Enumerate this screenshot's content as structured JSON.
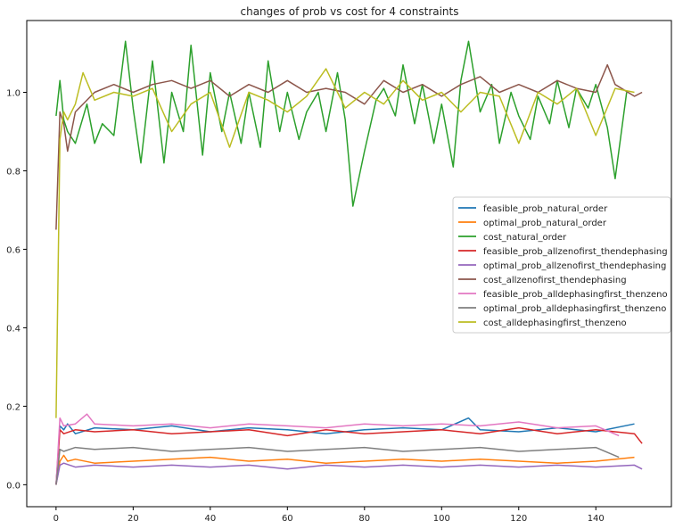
{
  "chart_data": {
    "type": "line",
    "title": "changes of prob vs cost for 4 constraints",
    "xlabel": "",
    "ylabel": "",
    "xlim": [
      -7.6,
      159.6
    ],
    "ylim": [
      -0.056,
      1.183
    ],
    "xticks": [
      0,
      20,
      40,
      60,
      80,
      100,
      120,
      140
    ],
    "yticks": [
      0.0,
      0.2,
      0.4,
      0.6,
      0.8,
      1.0
    ],
    "ytick_labels": [
      "0.0",
      "0.2",
      "0.4",
      "0.6",
      "0.8",
      "1.0"
    ],
    "grid": false,
    "legend_position": "center-right",
    "series": [
      {
        "name": "feasible_prob_natural_order",
        "color": "#1f77b4",
        "x": [
          0,
          1,
          2,
          3,
          5,
          10,
          20,
          30,
          40,
          50,
          60,
          70,
          80,
          90,
          100,
          107,
          110,
          120,
          130,
          140,
          150
        ],
        "values": [
          0.0,
          0.15,
          0.14,
          0.155,
          0.13,
          0.145,
          0.14,
          0.15,
          0.135,
          0.145,
          0.14,
          0.13,
          0.14,
          0.145,
          0.14,
          0.17,
          0.14,
          0.135,
          0.145,
          0.135,
          0.155
        ]
      },
      {
        "name": "optimal_prob_natural_order",
        "color": "#ff7f0e",
        "x": [
          0,
          1,
          2,
          3,
          5,
          10,
          20,
          30,
          40,
          50,
          60,
          70,
          80,
          90,
          100,
          110,
          120,
          130,
          140,
          150
        ],
        "values": [
          0.0,
          0.06,
          0.075,
          0.06,
          0.065,
          0.055,
          0.06,
          0.065,
          0.07,
          0.06,
          0.065,
          0.055,
          0.06,
          0.065,
          0.06,
          0.065,
          0.06,
          0.055,
          0.06,
          0.07
        ]
      },
      {
        "name": "cost_natural_order",
        "color": "#2ca02c",
        "x": [
          0,
          1,
          2,
          3,
          5,
          8,
          10,
          12,
          15,
          18,
          20,
          22,
          25,
          28,
          30,
          33,
          35,
          38,
          40,
          43,
          45,
          48,
          50,
          53,
          55,
          58,
          60,
          63,
          65,
          68,
          70,
          73,
          75,
          77,
          80,
          83,
          85,
          88,
          90,
          93,
          95,
          98,
          100,
          103,
          105,
          107,
          110,
          113,
          115,
          118,
          120,
          123,
          125,
          128,
          130,
          133,
          135,
          138,
          140,
          143,
          145,
          148
        ],
        "values": [
          0.94,
          1.03,
          0.93,
          0.9,
          0.87,
          0.97,
          0.87,
          0.92,
          0.89,
          1.13,
          0.96,
          0.82,
          1.08,
          0.82,
          1.0,
          0.9,
          1.12,
          0.84,
          1.05,
          0.9,
          1.0,
          0.87,
          1.0,
          0.86,
          1.08,
          0.9,
          1.0,
          0.88,
          0.95,
          1.0,
          0.9,
          1.05,
          0.93,
          0.71,
          0.85,
          0.98,
          1.01,
          0.94,
          1.07,
          0.92,
          1.02,
          0.87,
          0.97,
          0.81,
          1.03,
          1.13,
          0.95,
          1.02,
          0.87,
          1.0,
          0.94,
          0.88,
          0.99,
          0.92,
          1.03,
          0.91,
          1.01,
          0.96,
          1.02,
          0.91,
          0.78,
          1.0
        ]
      },
      {
        "name": "feasible_prob_allzenofirst_thendephasing",
        "color": "#d62728",
        "x": [
          0,
          1,
          2,
          5,
          10,
          20,
          30,
          40,
          50,
          60,
          70,
          80,
          90,
          100,
          110,
          120,
          130,
          140,
          150,
          152
        ],
        "values": [
          0.0,
          0.14,
          0.13,
          0.14,
          0.135,
          0.14,
          0.13,
          0.135,
          0.14,
          0.125,
          0.14,
          0.13,
          0.135,
          0.14,
          0.13,
          0.145,
          0.13,
          0.14,
          0.13,
          0.105
        ]
      },
      {
        "name": "optimal_prob_allzenofirst_thendephasing",
        "color": "#9467bd",
        "x": [
          0,
          1,
          2,
          5,
          10,
          20,
          30,
          40,
          50,
          60,
          70,
          80,
          90,
          100,
          110,
          120,
          130,
          140,
          150,
          152
        ],
        "values": [
          0.0,
          0.05,
          0.055,
          0.045,
          0.05,
          0.045,
          0.05,
          0.045,
          0.05,
          0.04,
          0.05,
          0.045,
          0.05,
          0.045,
          0.05,
          0.045,
          0.05,
          0.045,
          0.05,
          0.04
        ]
      },
      {
        "name": "cost_allzenofirst_thendephasing",
        "color": "#8c564b",
        "x": [
          0,
          1,
          2,
          3,
          5,
          10,
          15,
          20,
          25,
          30,
          35,
          40,
          45,
          50,
          55,
          60,
          65,
          70,
          75,
          80,
          85,
          90,
          95,
          100,
          105,
          110,
          115,
          120,
          125,
          130,
          135,
          140,
          143,
          145,
          150,
          152
        ],
        "values": [
          0.65,
          0.95,
          0.92,
          0.85,
          0.95,
          1.0,
          1.02,
          1.0,
          1.02,
          1.03,
          1.01,
          1.03,
          0.99,
          1.02,
          1.0,
          1.03,
          1.0,
          1.01,
          1.0,
          0.97,
          1.03,
          1.0,
          1.02,
          0.99,
          1.02,
          1.04,
          1.0,
          1.02,
          1.0,
          1.03,
          1.01,
          1.0,
          1.07,
          1.02,
          0.99,
          1.0
        ]
      },
      {
        "name": "feasible_prob_alldephasingfirst_thenzeno",
        "color": "#e377c2",
        "x": [
          0,
          1,
          2,
          5,
          8,
          10,
          20,
          30,
          40,
          50,
          60,
          70,
          80,
          90,
          100,
          110,
          120,
          130,
          140,
          146
        ],
        "values": [
          0.0,
          0.17,
          0.15,
          0.155,
          0.18,
          0.155,
          0.15,
          0.155,
          0.145,
          0.155,
          0.15,
          0.145,
          0.155,
          0.15,
          0.155,
          0.15,
          0.16,
          0.145,
          0.15,
          0.125
        ]
      },
      {
        "name": "optimal_prob_alldephasingfirst_thenzeno",
        "color": "#7f7f7f",
        "x": [
          0,
          1,
          2,
          5,
          10,
          20,
          30,
          40,
          50,
          60,
          70,
          80,
          90,
          100,
          110,
          120,
          130,
          140,
          146
        ],
        "values": [
          0.0,
          0.09,
          0.085,
          0.095,
          0.09,
          0.095,
          0.085,
          0.09,
          0.095,
          0.085,
          0.09,
          0.095,
          0.085,
          0.09,
          0.095,
          0.085,
          0.09,
          0.095,
          0.07
        ]
      },
      {
        "name": "cost_alldephasingfirst_thenzeno",
        "color": "#bcbd22",
        "x": [
          0,
          1,
          2,
          3,
          5,
          7,
          10,
          15,
          20,
          25,
          30,
          35,
          40,
          45,
          50,
          55,
          60,
          65,
          70,
          75,
          80,
          85,
          90,
          95,
          100,
          105,
          110,
          115,
          120,
          125,
          130,
          135,
          140,
          145,
          150
        ],
        "values": [
          0.17,
          0.88,
          0.95,
          0.93,
          0.97,
          1.05,
          0.98,
          1.0,
          0.99,
          1.01,
          0.9,
          0.97,
          1.0,
          0.86,
          1.0,
          0.98,
          0.95,
          0.99,
          1.06,
          0.96,
          1.0,
          0.97,
          1.03,
          0.98,
          1.0,
          0.95,
          1.0,
          0.99,
          0.87,
          1.0,
          0.97,
          1.01,
          0.89,
          1.01,
          1.0
        ]
      }
    ]
  }
}
